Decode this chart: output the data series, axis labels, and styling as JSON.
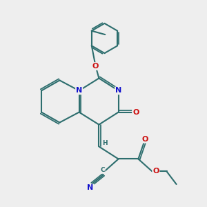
{
  "background_color": "#eeeeee",
  "bond_color": "#2d6e6e",
  "bond_width": 1.5,
  "atom_colors": {
    "N": "#1010cc",
    "O": "#cc1010",
    "C": "#2d6e6e",
    "H": "#2d6e6e"
  },
  "font_size_atoms": 8,
  "font_size_small": 6.5
}
